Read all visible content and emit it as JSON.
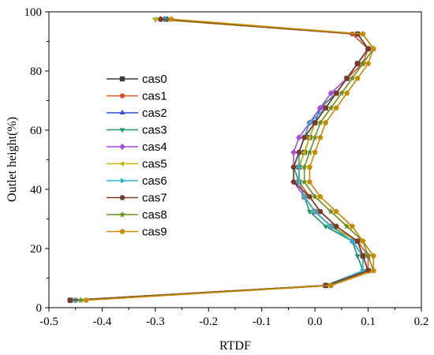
{
  "chart_data": {
    "type": "line",
    "xlabel": "RTDF",
    "ylabel": "Outlet height(%)",
    "xlim": [
      -0.5,
      0.2
    ],
    "ylim": [
      0,
      100
    ],
    "xticks": [
      "-0.5",
      "-0.4",
      "-0.3",
      "-0.2",
      "-0.1",
      "0.0",
      "0.1",
      "0.2"
    ],
    "yticks": [
      "0",
      "20",
      "40",
      "60",
      "80",
      "100"
    ],
    "legend_position": "center-left",
    "grid": false,
    "y": [
      2.5,
      7.5,
      12.5,
      17.5,
      22.5,
      27.5,
      32.5,
      37.5,
      42.5,
      47.5,
      52.5,
      57.5,
      62.5,
      67.5,
      72.5,
      77.5,
      82.5,
      87.5,
      92.5,
      97.5
    ],
    "series": [
      {
        "name": "cas0",
        "color": "#3b3b3b",
        "marker": "square",
        "x": [
          -0.46,
          0.02,
          0.1,
          0.09,
          0.08,
          0.03,
          0.0,
          -0.02,
          -0.03,
          -0.03,
          -0.02,
          -0.01,
          0.0,
          0.02,
          0.04,
          0.06,
          0.08,
          0.1,
          0.08,
          -0.28
        ]
      },
      {
        "name": "cas1",
        "color": "#d9532a",
        "marker": "circle",
        "x": [
          -0.45,
          0.03,
          0.1,
          0.1,
          0.08,
          0.04,
          0.01,
          -0.01,
          -0.03,
          -0.04,
          -0.03,
          -0.02,
          -0.01,
          0.01,
          0.04,
          0.06,
          0.09,
          0.1,
          0.07,
          -0.29
        ]
      },
      {
        "name": "cas2",
        "color": "#2b4fd6",
        "marker": "triangle-up",
        "x": [
          -0.46,
          0.02,
          0.1,
          0.09,
          0.07,
          0.03,
          0.0,
          -0.02,
          -0.03,
          -0.03,
          -0.03,
          -0.02,
          0.0,
          0.01,
          0.04,
          0.06,
          0.08,
          0.1,
          0.08,
          -0.29
        ]
      },
      {
        "name": "cas3",
        "color": "#1e9a6a",
        "marker": "triangle-down",
        "x": [
          -0.45,
          0.03,
          0.09,
          0.08,
          0.07,
          0.02,
          -0.01,
          -0.02,
          -0.03,
          -0.04,
          -0.03,
          -0.02,
          -0.01,
          0.01,
          0.04,
          0.06,
          0.08,
          0.1,
          0.08,
          -0.3
        ]
      },
      {
        "name": "cas4",
        "color": "#a64ce0",
        "marker": "diamond",
        "x": [
          -0.46,
          0.02,
          0.1,
          0.09,
          0.08,
          0.03,
          0.0,
          -0.02,
          -0.04,
          -0.04,
          -0.04,
          -0.03,
          -0.01,
          0.01,
          0.03,
          0.06,
          0.08,
          0.1,
          0.08,
          -0.29
        ]
      },
      {
        "name": "cas5",
        "color": "#c8b400",
        "marker": "triangle-left",
        "x": [
          -0.46,
          0.02,
          0.1,
          0.09,
          0.08,
          0.03,
          0.0,
          -0.02,
          -0.03,
          -0.03,
          -0.02,
          -0.01,
          0.0,
          0.02,
          0.04,
          0.06,
          0.08,
          0.1,
          0.08,
          -0.3
        ]
      },
      {
        "name": "cas6",
        "color": "#2bb0d4",
        "marker": "triangle-right",
        "x": [
          -0.45,
          0.02,
          0.09,
          0.09,
          0.07,
          0.03,
          0.0,
          -0.02,
          -0.03,
          -0.03,
          -0.03,
          -0.02,
          -0.01,
          0.02,
          0.04,
          0.06,
          0.08,
          0.1,
          0.08,
          -0.28
        ]
      },
      {
        "name": "cas7",
        "color": "#7a3a2a",
        "marker": "hexagon",
        "x": [
          -0.46,
          0.02,
          0.1,
          0.09,
          0.08,
          0.04,
          0.01,
          -0.01,
          -0.04,
          -0.04,
          -0.03,
          -0.02,
          0.0,
          0.02,
          0.04,
          0.06,
          0.08,
          0.1,
          0.08,
          -0.29
        ]
      },
      {
        "name": "cas8",
        "color": "#6f8f1e",
        "marker": "star",
        "x": [
          -0.44,
          0.03,
          0.11,
          0.1,
          0.09,
          0.06,
          0.03,
          0.0,
          -0.02,
          -0.02,
          -0.01,
          0.0,
          0.01,
          0.03,
          0.05,
          0.07,
          0.09,
          0.11,
          0.09,
          -0.27
        ]
      },
      {
        "name": "cas9",
        "color": "#c98b00",
        "marker": "pentagon",
        "x": [
          -0.43,
          0.03,
          0.11,
          0.11,
          0.09,
          0.07,
          0.04,
          0.01,
          -0.01,
          -0.01,
          0.0,
          0.01,
          0.02,
          0.04,
          0.06,
          0.08,
          0.1,
          0.11,
          0.09,
          -0.27
        ]
      }
    ]
  }
}
